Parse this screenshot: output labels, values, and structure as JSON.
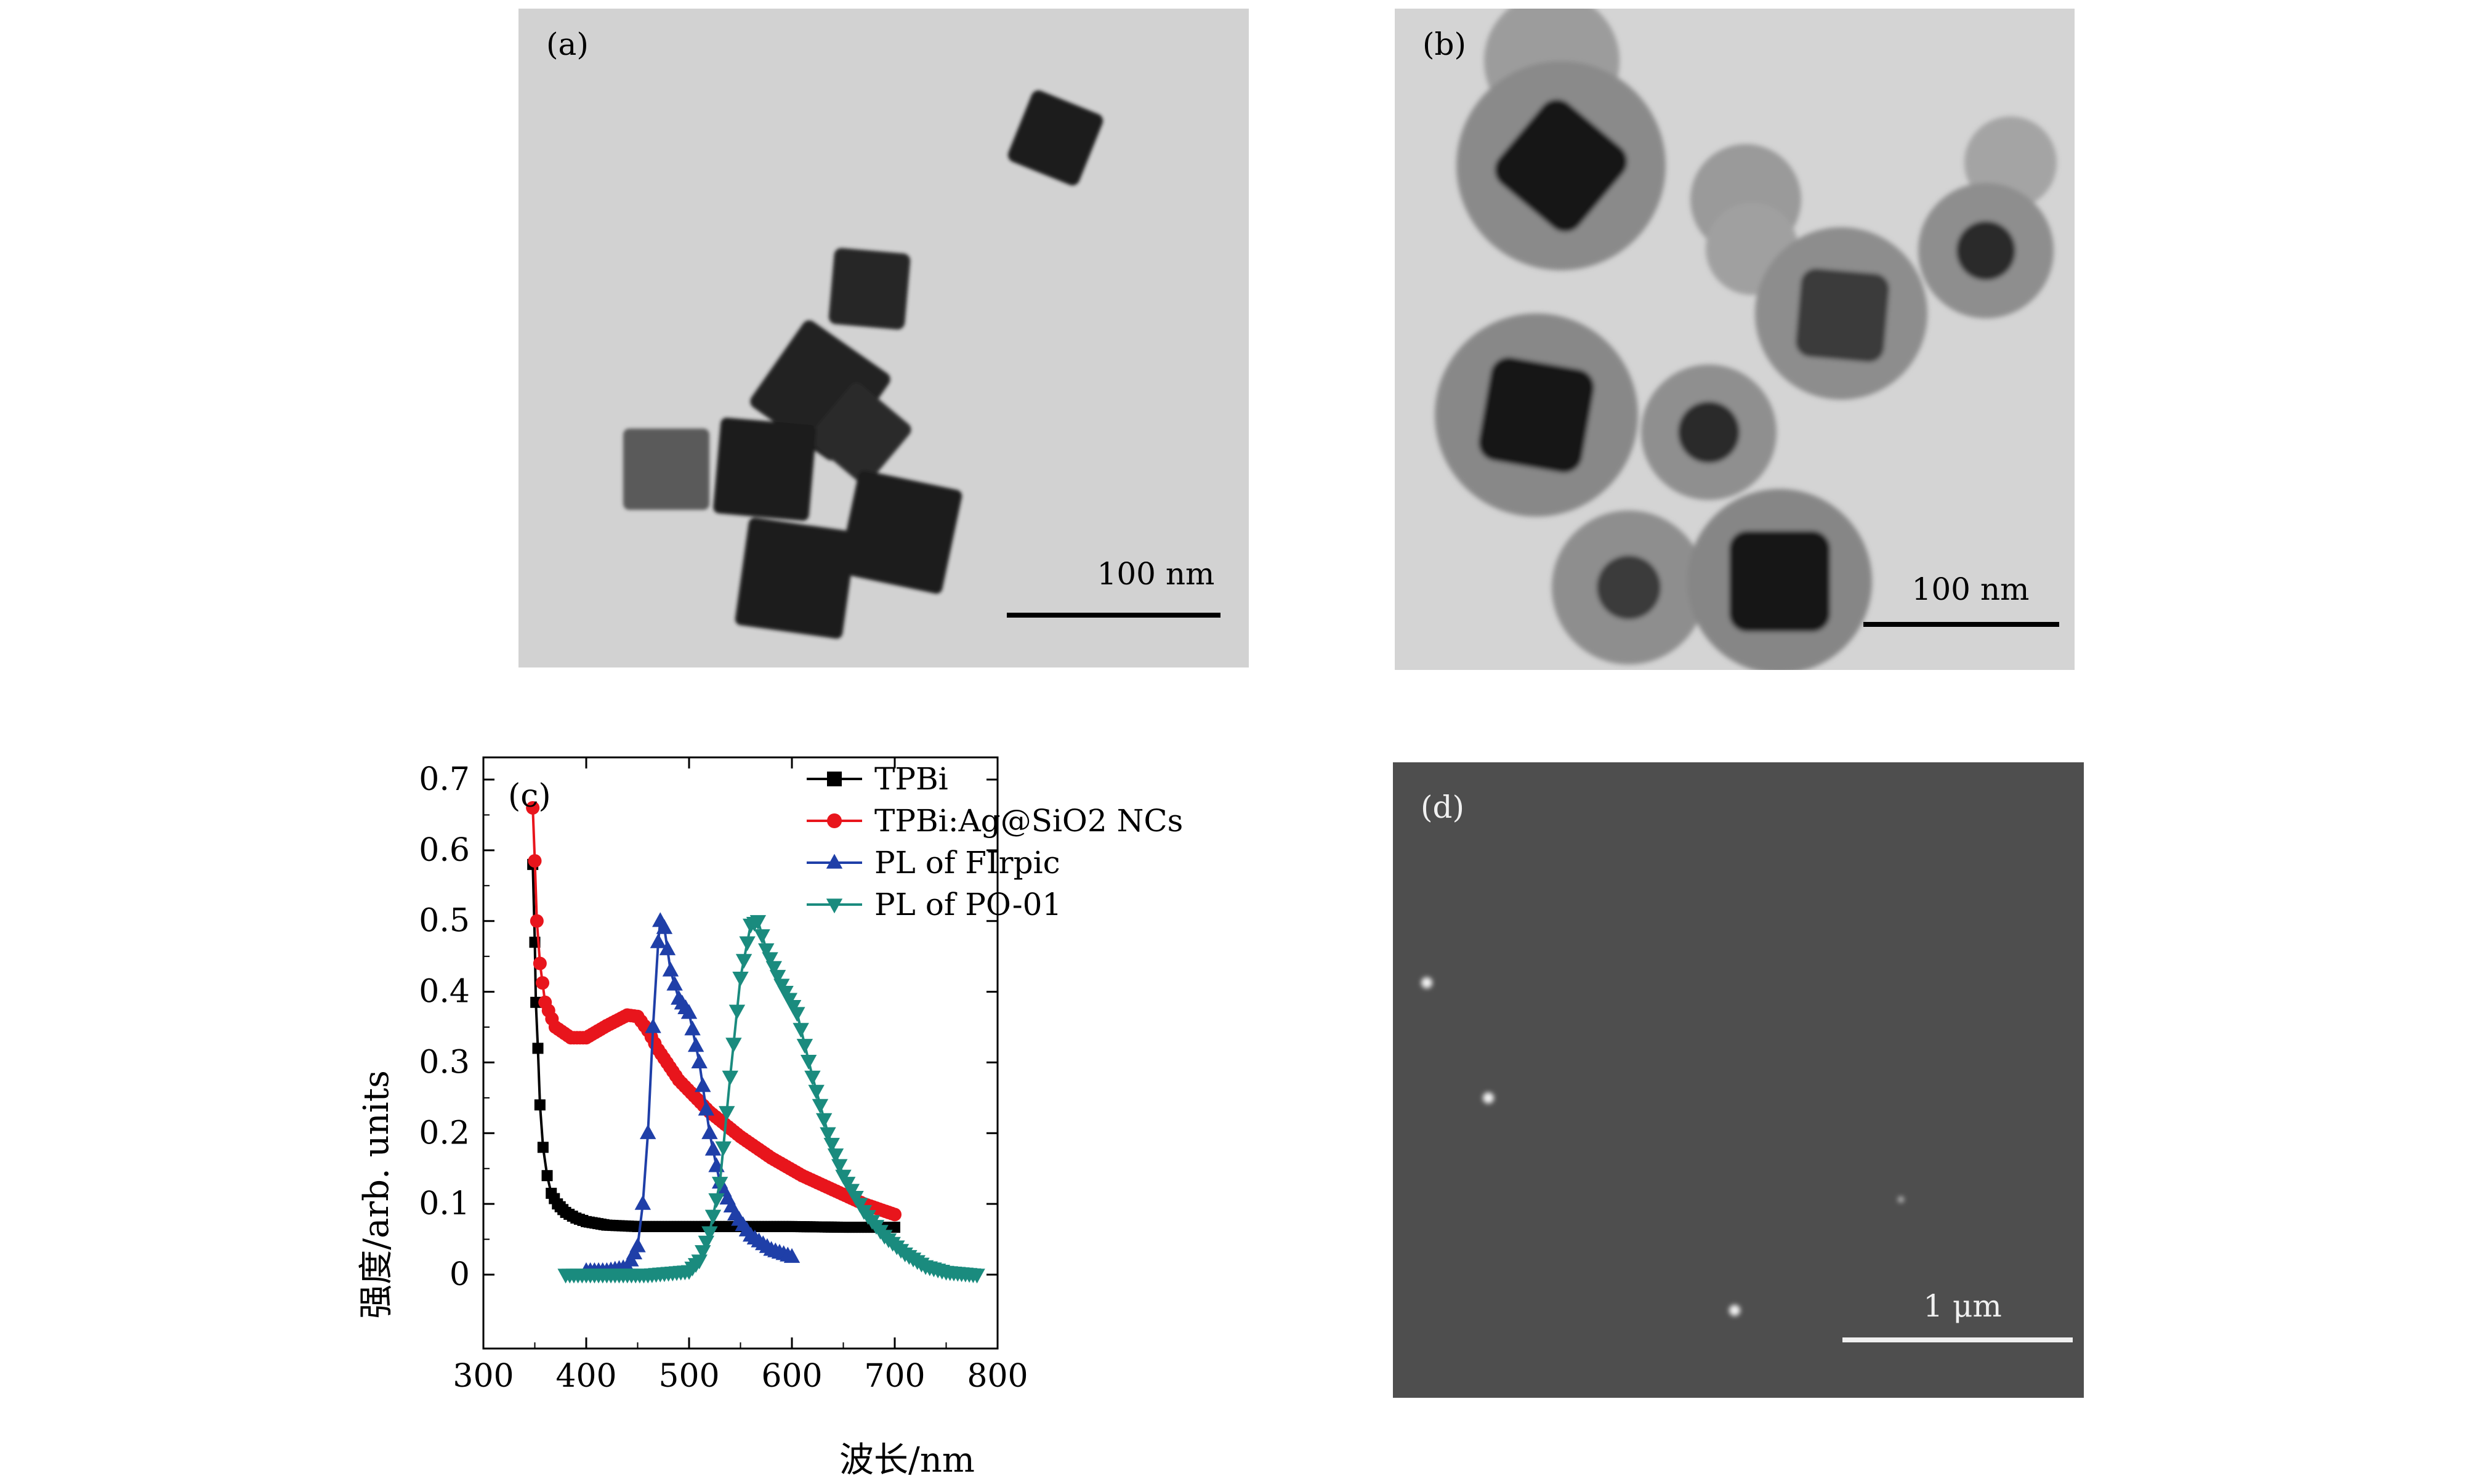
{
  "panels": {
    "a": {
      "label": "(a)",
      "scale_bar": "100 nm"
    },
    "b": {
      "label": "(b)",
      "scale_bar": "100 nm"
    },
    "c": {
      "label": "(c)"
    },
    "d": {
      "label": "(d)",
      "scale_bar": "1 μm"
    }
  },
  "colors": {
    "tpbi": "#000000",
    "tpbi_ag": "#e8151c",
    "firpic": "#1f3fa8",
    "po01": "#1a8b7e"
  },
  "chart_data": {
    "type": "line",
    "xlabel": "波长/nm",
    "ylabel": "强度/arb. units",
    "xlim": [
      300,
      800
    ],
    "ylim": [
      0,
      0.7
    ],
    "xticks": [
      "300",
      "400",
      "500",
      "600",
      "700",
      "800"
    ],
    "yticks": [
      "0",
      "0.1",
      "0.2",
      "0.3",
      "0.4",
      "0.5",
      "0.6",
      "0.7"
    ],
    "legend_position": "top-right",
    "series": [
      {
        "name": "TPBi",
        "marker": "square",
        "color": "#000000",
        "points": [
          [
            348,
            0.58
          ],
          [
            350,
            0.47
          ],
          [
            351,
            0.385
          ],
          [
            353,
            0.32
          ],
          [
            355,
            0.24
          ],
          [
            358,
            0.18
          ],
          [
            362,
            0.14
          ],
          [
            366,
            0.115
          ],
          [
            372,
            0.1
          ],
          [
            380,
            0.088
          ],
          [
            390,
            0.08
          ],
          [
            400,
            0.075
          ],
          [
            420,
            0.07
          ],
          [
            450,
            0.068
          ],
          [
            500,
            0.068
          ],
          [
            550,
            0.068
          ],
          [
            600,
            0.068
          ],
          [
            650,
            0.067
          ],
          [
            700,
            0.067
          ]
        ]
      },
      {
        "name": "TPBi:Ag@SiO2 NCs",
        "marker": "circle",
        "color": "#e8151c",
        "points": [
          [
            348,
            0.66
          ],
          [
            350,
            0.585
          ],
          [
            352,
            0.5
          ],
          [
            355,
            0.44
          ],
          [
            360,
            0.385
          ],
          [
            370,
            0.35
          ],
          [
            385,
            0.335
          ],
          [
            400,
            0.335
          ],
          [
            420,
            0.352
          ],
          [
            440,
            0.367
          ],
          [
            450,
            0.365
          ],
          [
            460,
            0.345
          ],
          [
            470,
            0.318
          ],
          [
            490,
            0.275
          ],
          [
            520,
            0.23
          ],
          [
            550,
            0.195
          ],
          [
            580,
            0.165
          ],
          [
            610,
            0.14
          ],
          [
            640,
            0.12
          ],
          [
            670,
            0.1
          ],
          [
            700,
            0.085
          ]
        ]
      },
      {
        "name": "PL of FIrpic",
        "marker": "triangle-up",
        "color": "#1f3fa8",
        "points": [
          [
            400,
            0.005
          ],
          [
            420,
            0.005
          ],
          [
            440,
            0.01
          ],
          [
            450,
            0.04
          ],
          [
            455,
            0.1
          ],
          [
            460,
            0.2
          ],
          [
            465,
            0.35
          ],
          [
            470,
            0.47
          ],
          [
            472,
            0.5
          ],
          [
            476,
            0.49
          ],
          [
            482,
            0.43
          ],
          [
            490,
            0.39
          ],
          [
            500,
            0.37
          ],
          [
            510,
            0.3
          ],
          [
            520,
            0.2
          ],
          [
            530,
            0.13
          ],
          [
            545,
            0.085
          ],
          [
            560,
            0.055
          ],
          [
            580,
            0.035
          ],
          [
            600,
            0.025
          ]
        ]
      },
      {
        "name": "PL of PO-01",
        "marker": "triangle-down",
        "color": "#1a8b7e",
        "points": [
          [
            380,
            0
          ],
          [
            420,
            0
          ],
          [
            460,
            0
          ],
          [
            500,
            0.005
          ],
          [
            510,
            0.02
          ],
          [
            520,
            0.06
          ],
          [
            530,
            0.13
          ],
          [
            540,
            0.28
          ],
          [
            550,
            0.42
          ],
          [
            560,
            0.495
          ],
          [
            567,
            0.5
          ],
          [
            575,
            0.46
          ],
          [
            590,
            0.41
          ],
          [
            605,
            0.37
          ],
          [
            620,
            0.28
          ],
          [
            635,
            0.2
          ],
          [
            650,
            0.14
          ],
          [
            670,
            0.09
          ],
          [
            690,
            0.055
          ],
          [
            710,
            0.03
          ],
          [
            730,
            0.012
          ],
          [
            750,
            0.004
          ],
          [
            780,
            0
          ]
        ]
      }
    ]
  }
}
